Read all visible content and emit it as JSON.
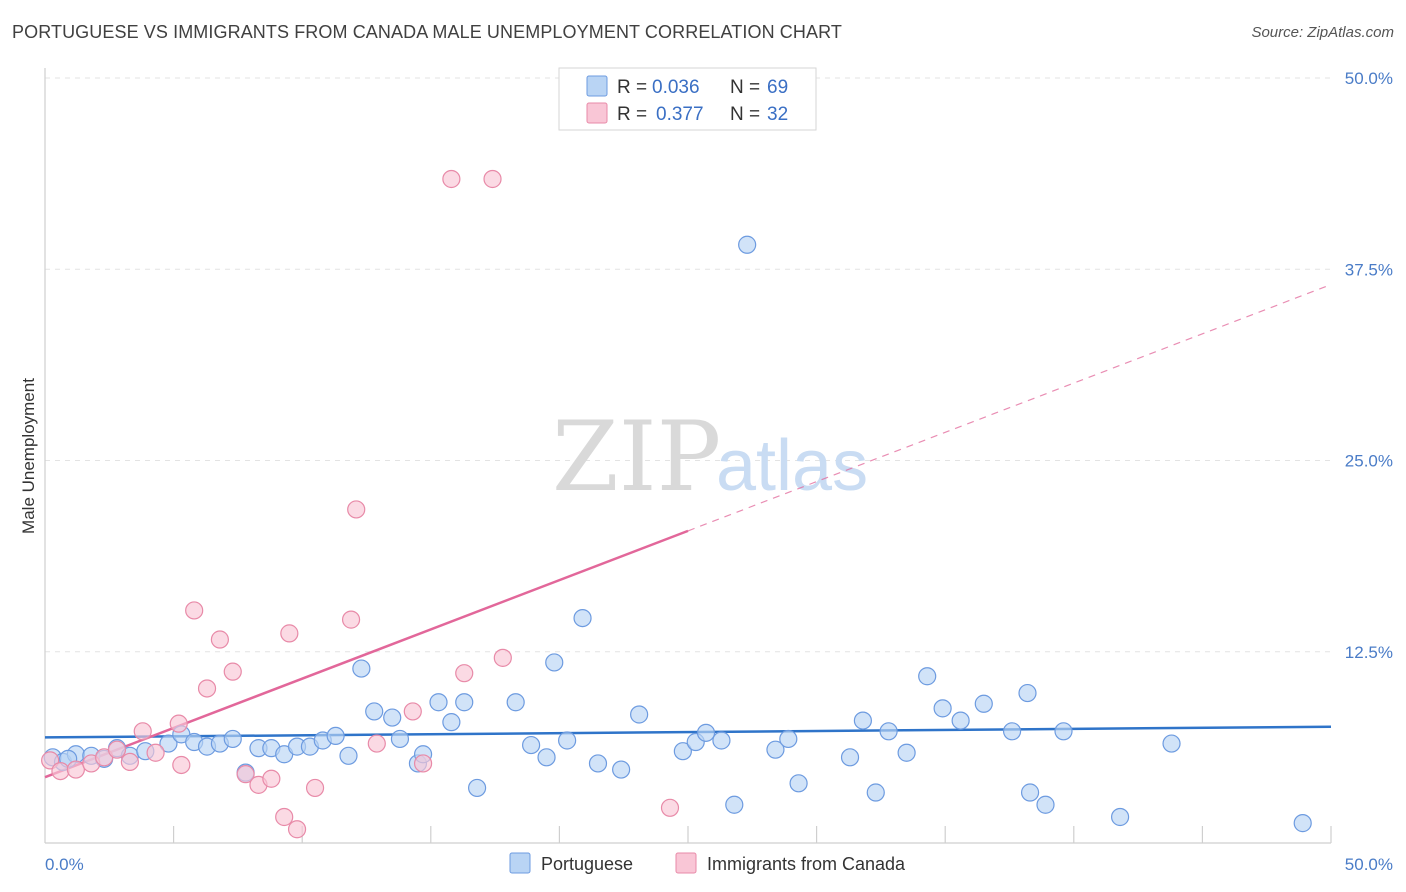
{
  "title": "PORTUGUESE VS IMMIGRANTS FROM CANADA MALE UNEMPLOYMENT CORRELATION CHART",
  "source": "Source: ZipAtlas.com",
  "watermark": {
    "zip": "ZIP",
    "atlas": "atlas"
  },
  "legend": {
    "items": [
      {
        "r_label": "R =",
        "r_value": "0.036",
        "n_label": "N =",
        "n_value": "69",
        "fill": "#b9d4f4",
        "stroke": "#6d9be0"
      },
      {
        "r_label": "R =",
        "r_value": "0.377",
        "n_label": "N =",
        "n_value": "32",
        "fill": "#f9c6d6",
        "stroke": "#e88aa8"
      }
    ]
  },
  "bottom_legend": [
    {
      "label": "Portuguese",
      "fill": "#b9d4f4",
      "stroke": "#6d9be0"
    },
    {
      "label": "Immigrants from Canada",
      "fill": "#f9c6d6",
      "stroke": "#e88aa8"
    }
  ],
  "chart_data": {
    "type": "scatter",
    "title": "PORTUGUESE VS IMMIGRANTS FROM CANADA MALE UNEMPLOYMENT CORRELATION CHART",
    "xlabel": "",
    "ylabel": "Male Unemployment",
    "xlim": [
      0,
      50
    ],
    "ylim": [
      0,
      50
    ],
    "x_tick_labels": [
      {
        "value": 0,
        "label": "0.0%"
      },
      {
        "value": 50,
        "label": "50.0%"
      }
    ],
    "y_tick_labels": [
      {
        "value": 12.5,
        "label": "12.5%"
      },
      {
        "value": 25,
        "label": "25.0%"
      },
      {
        "value": 37.5,
        "label": "37.5%"
      },
      {
        "value": 50,
        "label": "50.0%"
      }
    ],
    "grid": true,
    "legend_position": "top-center",
    "series": [
      {
        "name": "Portuguese",
        "color": "#6d9be0",
        "fill": "#b9d4f4",
        "trend": {
          "x": [
            0,
            50
          ],
          "y": [
            6.9,
            7.6
          ],
          "color": "#2f74c9"
        },
        "points": [
          [
            0.3,
            5.6
          ],
          [
            0.7,
            5.3
          ],
          [
            1.2,
            5.8
          ],
          [
            1.8,
            5.7
          ],
          [
            2.3,
            5.5
          ],
          [
            2.8,
            6.2
          ],
          [
            3.3,
            5.7
          ],
          [
            3.9,
            6.0
          ],
          [
            4.8,
            6.5
          ],
          [
            5.3,
            7.1
          ],
          [
            5.8,
            6.6
          ],
          [
            6.3,
            6.3
          ],
          [
            6.8,
            6.5
          ],
          [
            7.3,
            6.8
          ],
          [
            7.8,
            4.6
          ],
          [
            8.3,
            6.2
          ],
          [
            8.8,
            6.2
          ],
          [
            9.3,
            5.8
          ],
          [
            9.8,
            6.3
          ],
          [
            10.3,
            6.3
          ],
          [
            10.8,
            6.7
          ],
          [
            11.3,
            7.0
          ],
          [
            11.8,
            5.7
          ],
          [
            12.3,
            11.4
          ],
          [
            12.8,
            8.6
          ],
          [
            13.5,
            8.2
          ],
          [
            13.8,
            6.8
          ],
          [
            14.5,
            5.2
          ],
          [
            14.7,
            5.8
          ],
          [
            15.3,
            9.2
          ],
          [
            15.8,
            7.9
          ],
          [
            16.3,
            9.2
          ],
          [
            16.8,
            3.6
          ],
          [
            18.3,
            9.2
          ],
          [
            18.9,
            6.4
          ],
          [
            19.5,
            5.6
          ],
          [
            19.8,
            11.8
          ],
          [
            20.3,
            6.7
          ],
          [
            20.9,
            14.7
          ],
          [
            21.5,
            5.2
          ],
          [
            22.4,
            4.8
          ],
          [
            23.1,
            8.4
          ],
          [
            24.8,
            6.0
          ],
          [
            25.3,
            6.6
          ],
          [
            25.7,
            7.2
          ],
          [
            26.3,
            6.7
          ],
          [
            26.8,
            2.5
          ],
          [
            27.3,
            39.1
          ],
          [
            28.4,
            6.1
          ],
          [
            28.9,
            6.8
          ],
          [
            29.3,
            3.9
          ],
          [
            31.3,
            5.6
          ],
          [
            31.8,
            8.0
          ],
          [
            32.3,
            3.3
          ],
          [
            32.8,
            7.3
          ],
          [
            33.5,
            5.9
          ],
          [
            34.3,
            10.9
          ],
          [
            34.9,
            8.8
          ],
          [
            35.6,
            8.0
          ],
          [
            36.5,
            9.1
          ],
          [
            37.6,
            7.3
          ],
          [
            38.2,
            9.8
          ],
          [
            38.3,
            3.3
          ],
          [
            38.9,
            2.5
          ],
          [
            39.6,
            7.3
          ],
          [
            41.8,
            1.7
          ],
          [
            43.8,
            6.5
          ],
          [
            48.9,
            1.3
          ],
          [
            0.9,
            5.5
          ]
        ]
      },
      {
        "name": "Immigrants from Canada",
        "color": "#e88aa8",
        "fill": "#f9c6d6",
        "trend": {
          "x": [
            0,
            25
          ],
          "y": [
            4.3,
            20.4
          ],
          "x_ext": [
            25,
            50
          ],
          "y_ext": [
            20.4,
            36.5
          ],
          "color": "#e2679a"
        },
        "points": [
          [
            0.2,
            5.4
          ],
          [
            0.6,
            4.7
          ],
          [
            1.2,
            4.8
          ],
          [
            1.8,
            5.2
          ],
          [
            2.3,
            5.6
          ],
          [
            2.8,
            6.1
          ],
          [
            3.3,
            5.3
          ],
          [
            3.8,
            7.3
          ],
          [
            4.3,
            5.9
          ],
          [
            5.2,
            7.8
          ],
          [
            5.3,
            5.1
          ],
          [
            5.8,
            15.2
          ],
          [
            6.3,
            10.1
          ],
          [
            6.8,
            13.3
          ],
          [
            7.3,
            11.2
          ],
          [
            7.8,
            4.5
          ],
          [
            8.3,
            3.8
          ],
          [
            8.8,
            4.2
          ],
          [
            9.3,
            1.7
          ],
          [
            9.5,
            13.7
          ],
          [
            9.8,
            0.9
          ],
          [
            10.5,
            3.6
          ],
          [
            11.9,
            14.6
          ],
          [
            12.1,
            21.8
          ],
          [
            12.9,
            6.5
          ],
          [
            14.3,
            8.6
          ],
          [
            14.7,
            5.2
          ],
          [
            15.8,
            43.4
          ],
          [
            16.3,
            11.1
          ],
          [
            17.4,
            43.4
          ],
          [
            17.8,
            12.1
          ],
          [
            24.3,
            2.3
          ]
        ]
      }
    ]
  }
}
